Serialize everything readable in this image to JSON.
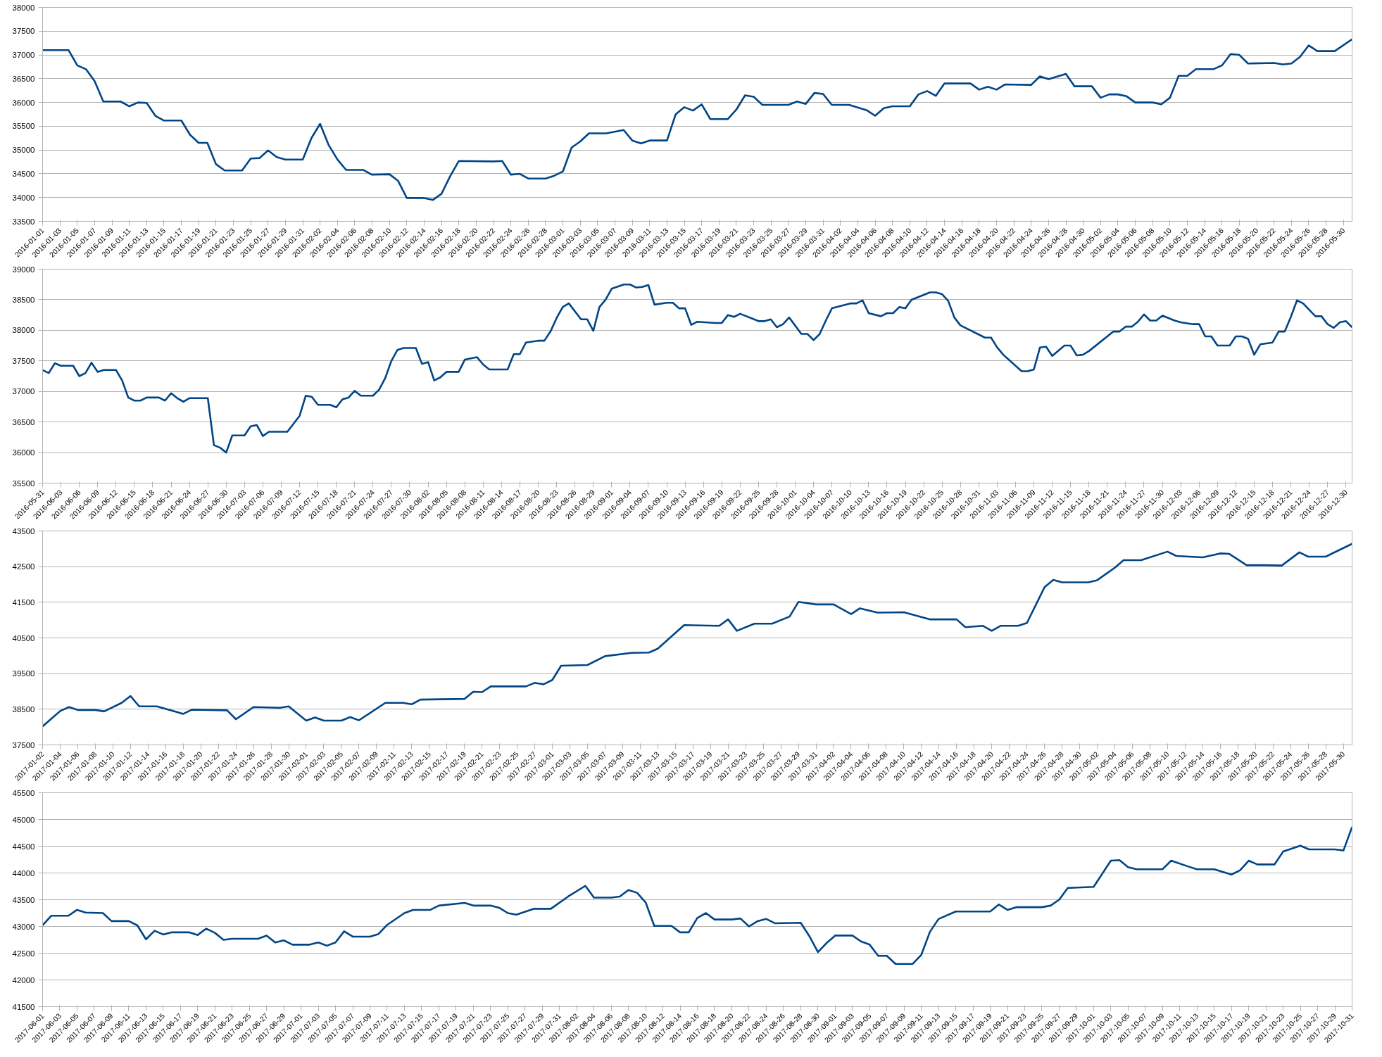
{
  "chart_data": [
    {
      "type": "line",
      "grid": "y",
      "xlim": [
        "2016-01-01",
        "2016-05-31"
      ],
      "ylim": [
        33500,
        38000
      ],
      "yticks": [
        33500,
        34000,
        34500,
        35000,
        35500,
        36000,
        36500,
        37000,
        37500,
        38000
      ],
      "xticks": [
        "2016-01-01",
        "2016-01-03",
        "2016-01-05",
        "2016-01-07",
        "2016-01-09",
        "2016-01-11",
        "2016-01-13",
        "2016-01-15",
        "2016-01-17",
        "2016-01-19",
        "2016-01-21",
        "2016-01-23",
        "2016-01-25",
        "2016-01-27",
        "2016-01-29",
        "2016-01-31",
        "2016-02-02",
        "2016-02-04",
        "2016-02-06",
        "2016-02-08",
        "2016-02-10",
        "2016-02-12",
        "2016-02-14",
        "2016-02-16",
        "2016-02-18",
        "2016-02-20",
        "2016-02-22",
        "2016-02-24",
        "2016-02-26",
        "2016-02-28",
        "2016-03-01",
        "2016-03-03",
        "2016-03-05",
        "2016-03-07",
        "2016-03-09",
        "2016-03-11",
        "2016-03-13",
        "2016-03-15",
        "2016-03-17",
        "2016-03-19",
        "2016-03-21",
        "2016-03-23",
        "2016-03-25",
        "2016-03-27",
        "2016-03-29",
        "2016-03-31",
        "2016-04-02",
        "2016-04-04",
        "2016-04-06",
        "2016-04-08",
        "2016-04-10",
        "2016-04-12",
        "2016-04-14",
        "2016-04-16",
        "2016-04-18",
        "2016-04-20",
        "2016-04-22",
        "2016-04-24",
        "2016-04-26",
        "2016-04-28",
        "2016-04-30",
        "2016-05-02",
        "2016-05-04",
        "2016-05-06",
        "2016-05-08",
        "2016-05-10",
        "2016-05-12",
        "2016-05-14",
        "2016-05-16",
        "2016-05-18",
        "2016-05-20",
        "2016-05-22",
        "2016-05-24",
        "2016-05-26",
        "2016-05-28",
        "2016-05-30"
      ],
      "series": [
        {
          "color": "#004586",
          "x": [
            "2016-01-01",
            "2016-01-04",
            "2016-01-05",
            "2016-01-06",
            "2016-01-07",
            "2016-01-08",
            "2016-01-10",
            "2016-01-11",
            "2016-01-12",
            "2016-01-13",
            "2016-01-14",
            "2016-01-15",
            "2016-01-17",
            "2016-01-18",
            "2016-01-19",
            "2016-01-20",
            "2016-01-21",
            "2016-01-22",
            "2016-01-24",
            "2016-01-25",
            "2016-01-26",
            "2016-01-27",
            "2016-01-28",
            "2016-01-29",
            "2016-01-31",
            "2016-02-01",
            "2016-02-02",
            "2016-02-03",
            "2016-02-04",
            "2016-02-05",
            "2016-02-07",
            "2016-02-08",
            "2016-02-10",
            "2016-02-11",
            "2016-02-12",
            "2016-02-14",
            "2016-02-15",
            "2016-02-16",
            "2016-02-17",
            "2016-02-18",
            "2016-02-22",
            "2016-02-23",
            "2016-02-24",
            "2016-02-25",
            "2016-02-26",
            "2016-02-28",
            "2016-02-29",
            "2016-03-01",
            "2016-03-02",
            "2016-03-03",
            "2016-03-04",
            "2016-03-06",
            "2016-03-08",
            "2016-03-09",
            "2016-03-10",
            "2016-03-11",
            "2016-03-13",
            "2016-03-14",
            "2016-03-15",
            "2016-03-16",
            "2016-03-17",
            "2016-03-18",
            "2016-03-20",
            "2016-03-21",
            "2016-03-22",
            "2016-03-23",
            "2016-03-24",
            "2016-03-27",
            "2016-03-28",
            "2016-03-29",
            "2016-03-30",
            "2016-03-31",
            "2016-04-01",
            "2016-04-03",
            "2016-04-05",
            "2016-04-06",
            "2016-04-07",
            "2016-04-08",
            "2016-04-10",
            "2016-04-11",
            "2016-04-12",
            "2016-04-13",
            "2016-04-14",
            "2016-04-17",
            "2016-04-18",
            "2016-04-19",
            "2016-04-20",
            "2016-04-21",
            "2016-04-24",
            "2016-04-25",
            "2016-04-26",
            "2016-04-28",
            "2016-04-29",
            "2016-05-01",
            "2016-05-02",
            "2016-05-03",
            "2016-05-04",
            "2016-05-05",
            "2016-05-06",
            "2016-05-08",
            "2016-05-09",
            "2016-05-10",
            "2016-05-11",
            "2016-05-12",
            "2016-05-13",
            "2016-05-15",
            "2016-05-16",
            "2016-05-17",
            "2016-05-18",
            "2016-05-19",
            "2016-05-22",
            "2016-05-23",
            "2016-05-24",
            "2016-05-25",
            "2016-05-26",
            "2016-05-27",
            "2016-05-29",
            "2016-05-31"
          ],
          "values": [
            37100,
            37100,
            36780,
            36700,
            36450,
            36020,
            36020,
            35920,
            36000,
            35990,
            35720,
            35620,
            35620,
            35320,
            35150,
            35150,
            34700,
            34570,
            34570,
            34820,
            34830,
            34990,
            34850,
            34800,
            34800,
            35250,
            35550,
            35100,
            34800,
            34580,
            34580,
            34480,
            34490,
            34350,
            33990,
            33990,
            33950,
            34080,
            34450,
            34770,
            34760,
            34770,
            34480,
            34500,
            34400,
            34400,
            34460,
            34550,
            35050,
            35180,
            35350,
            35350,
            35420,
            35200,
            35140,
            35200,
            35200,
            35750,
            35900,
            35830,
            35960,
            35650,
            35650,
            35850,
            36150,
            36120,
            35950,
            35950,
            36020,
            35970,
            36200,
            36180,
            35950,
            35950,
            35840,
            35720,
            35880,
            35920,
            35920,
            36170,
            36240,
            36140,
            36400,
            36400,
            36270,
            36330,
            36270,
            36380,
            36370,
            36550,
            36490,
            36600,
            36340,
            36340,
            36100,
            36170,
            36170,
            36130,
            36000,
            36000,
            35960,
            36100,
            36560,
            36560,
            36700,
            36700,
            36780,
            37020,
            37000,
            36820,
            36830,
            36800,
            36820,
            36960,
            37200,
            37080,
            37080,
            37330
          ]
        }
      ]
    },
    {
      "type": "line",
      "grid": "y",
      "xlim": [
        "2016-05-31",
        "2016-12-31"
      ],
      "ylim": [
        35500,
        39000
      ],
      "yticks": [
        35500,
        36000,
        36500,
        37000,
        37500,
        38000,
        38500,
        39000
      ],
      "xticks": [
        "2016-05-31",
        "2016-06-03",
        "2016-06-06",
        "2016-06-09",
        "2016-06-12",
        "2016-06-15",
        "2016-06-18",
        "2016-06-21",
        "2016-06-24",
        "2016-06-27",
        "2016-06-30",
        "2016-07-03",
        "2016-07-06",
        "2016-07-09",
        "2016-07-12",
        "2016-07-15",
        "2016-07-18",
        "2016-07-21",
        "2016-07-24",
        "2016-07-27",
        "2016-07-30",
        "2016-08-02",
        "2016-08-05",
        "2016-08-08",
        "2016-08-11",
        "2016-08-14",
        "2016-08-17",
        "2016-08-20",
        "2016-08-23",
        "2016-08-26",
        "2016-08-29",
        "2016-09-01",
        "2016-09-04",
        "2016-09-07",
        "2016-09-10",
        "2016-09-13",
        "2016-09-16",
        "2016-09-19",
        "2016-09-22",
        "2016-09-25",
        "2016-09-28",
        "2016-10-01",
        "2016-10-04",
        "2016-10-07",
        "2016-10-10",
        "2016-10-13",
        "2016-10-16",
        "2016-10-19",
        "2016-10-22",
        "2016-10-25",
        "2016-10-28",
        "2016-10-31",
        "2016-11-03",
        "2016-11-06",
        "2016-11-09",
        "2016-11-12",
        "2016-11-15",
        "2016-11-18",
        "2016-11-21",
        "2016-11-24",
        "2016-11-27",
        "2016-11-30",
        "2016-12-03",
        "2016-12-06",
        "2016-12-09",
        "2016-12-12",
        "2016-12-15",
        "2016-12-18",
        "2016-12-21",
        "2016-12-24",
        "2016-12-27",
        "2016-12-30"
      ],
      "series": [
        {
          "color": "#004586",
          "x": [
            "2016-05-31",
            "2016-06-01",
            "2016-06-02",
            "2016-06-03",
            "2016-06-05",
            "2016-06-06",
            "2016-06-07",
            "2016-06-08",
            "2016-06-09",
            "2016-06-10",
            "2016-06-12",
            "2016-06-13",
            "2016-06-14",
            "2016-06-15",
            "2016-06-16",
            "2016-06-17",
            "2016-06-19",
            "2016-06-20",
            "2016-06-21",
            "2016-06-22",
            "2016-06-23",
            "2016-06-24",
            "2016-06-27",
            "2016-06-28",
            "2016-06-29",
            "2016-06-30",
            "2016-07-01",
            "2016-07-03",
            "2016-07-04",
            "2016-07-05",
            "2016-07-06",
            "2016-07-07",
            "2016-07-10",
            "2016-07-12",
            "2016-07-13",
            "2016-07-14",
            "2016-07-15",
            "2016-07-17",
            "2016-07-18",
            "2016-07-19",
            "2016-07-20",
            "2016-07-21",
            "2016-07-22",
            "2016-07-24",
            "2016-07-25",
            "2016-07-26",
            "2016-07-27",
            "2016-07-28",
            "2016-07-29",
            "2016-07-31",
            "2016-08-01",
            "2016-08-02",
            "2016-08-03",
            "2016-08-04",
            "2016-08-05",
            "2016-08-07",
            "2016-08-08",
            "2016-08-10",
            "2016-08-11",
            "2016-08-12",
            "2016-08-15",
            "2016-08-16",
            "2016-08-17",
            "2016-08-18",
            "2016-08-20",
            "2016-08-21",
            "2016-08-22",
            "2016-08-23",
            "2016-08-24",
            "2016-08-25",
            "2016-08-27",
            "2016-08-28",
            "2016-08-29",
            "2016-08-30",
            "2016-08-31",
            "2016-09-01",
            "2016-09-03",
            "2016-09-04",
            "2016-09-05",
            "2016-09-06",
            "2016-09-07",
            "2016-09-08",
            "2016-09-10",
            "2016-09-11",
            "2016-09-12",
            "2016-09-13",
            "2016-09-14",
            "2016-09-15",
            "2016-09-18",
            "2016-09-19",
            "2016-09-20",
            "2016-09-21",
            "2016-09-22",
            "2016-09-25",
            "2016-09-26",
            "2016-09-27",
            "2016-09-28",
            "2016-09-29",
            "2016-09-30",
            "2016-10-02",
            "2016-10-03",
            "2016-10-04",
            "2016-10-05",
            "2016-10-06",
            "2016-10-07",
            "2016-10-10",
            "2016-10-11",
            "2016-10-12",
            "2016-10-13",
            "2016-10-15",
            "2016-10-16",
            "2016-10-17",
            "2016-10-18",
            "2016-10-19",
            "2016-10-20",
            "2016-10-23",
            "2016-10-24",
            "2016-10-25",
            "2016-10-26",
            "2016-10-27",
            "2016-10-28",
            "2016-11-01",
            "2016-11-02",
            "2016-11-03",
            "2016-11-04",
            "2016-11-07",
            "2016-11-08",
            "2016-11-09",
            "2016-11-10",
            "2016-11-11",
            "2016-11-12",
            "2016-11-14",
            "2016-11-15",
            "2016-11-16",
            "2016-11-17",
            "2016-11-18",
            "2016-11-22",
            "2016-11-23",
            "2016-11-24",
            "2016-11-25",
            "2016-11-26",
            "2016-11-27",
            "2016-11-28",
            "2016-11-29",
            "2016-11-30",
            "2016-12-02",
            "2016-12-03",
            "2016-12-05",
            "2016-12-06",
            "2016-12-07",
            "2016-12-08",
            "2016-12-09",
            "2016-12-11",
            "2016-12-12",
            "2016-12-13",
            "2016-12-14",
            "2016-12-15",
            "2016-12-16",
            "2016-12-18",
            "2016-12-19",
            "2016-12-20",
            "2016-12-21",
            "2016-12-22",
            "2016-12-23",
            "2016-12-25",
            "2016-12-26",
            "2016-12-27",
            "2016-12-28",
            "2016-12-29",
            "2016-12-30",
            "2016-12-31"
          ],
          "values": [
            37350,
            37300,
            37460,
            37420,
            37420,
            37250,
            37300,
            37470,
            37320,
            37350,
            37350,
            37180,
            36900,
            36850,
            36850,
            36900,
            36900,
            36850,
            36970,
            36890,
            36830,
            36890,
            36890,
            36120,
            36080,
            36000,
            36280,
            36280,
            36430,
            36450,
            36270,
            36340,
            36340,
            36600,
            36930,
            36910,
            36780,
            36780,
            36740,
            36870,
            36900,
            37010,
            36930,
            36930,
            37030,
            37220,
            37500,
            37680,
            37710,
            37710,
            37450,
            37480,
            37180,
            37230,
            37320,
            37320,
            37520,
            37560,
            37440,
            37360,
            37360,
            37610,
            37610,
            37800,
            37830,
            37830,
            37980,
            38200,
            38380,
            38440,
            38180,
            38180,
            37990,
            38380,
            38500,
            38680,
            38750,
            38750,
            38700,
            38710,
            38740,
            38420,
            38450,
            38450,
            38360,
            38360,
            38090,
            38140,
            38120,
            38120,
            38250,
            38220,
            38270,
            38150,
            38150,
            38180,
            38050,
            38100,
            38210,
            37940,
            37940,
            37840,
            37940,
            38160,
            38360,
            38440,
            38440,
            38490,
            38280,
            38230,
            38280,
            38280,
            38380,
            38360,
            38500,
            38620,
            38620,
            38590,
            38480,
            38210,
            38080,
            37880,
            37880,
            37720,
            37600,
            37330,
            37330,
            37360,
            37720,
            37730,
            37580,
            37750,
            37750,
            37590,
            37600,
            37660,
            37980,
            37980,
            38060,
            38060,
            38140,
            38260,
            38160,
            38160,
            38240,
            38160,
            38130,
            38100,
            38100,
            37900,
            37900,
            37750,
            37750,
            37900,
            37900,
            37860,
            37600,
            37770,
            37800,
            37980,
            37980,
            38220,
            38490,
            38440,
            38230,
            38230,
            38100,
            38040,
            38130,
            38150,
            38050
          ]
        }
      ]
    },
    {
      "type": "line",
      "grid": "y",
      "xlim": [
        "2017-01-02",
        "2017-05-31"
      ],
      "ylim": [
        37500,
        43500
      ],
      "yticks": [
        37500,
        38500,
        39500,
        40500,
        41500,
        42500,
        43500
      ],
      "xticks": [
        "2017-01-02",
        "2017-01-04",
        "2017-01-06",
        "2017-01-08",
        "2017-01-10",
        "2017-01-12",
        "2017-01-14",
        "2017-01-16",
        "2017-01-18",
        "2017-01-20",
        "2017-01-22",
        "2017-01-24",
        "2017-01-26",
        "2017-01-28",
        "2017-01-30",
        "2017-02-01",
        "2017-02-03",
        "2017-02-05",
        "2017-02-07",
        "2017-02-09",
        "2017-02-11",
        "2017-02-13",
        "2017-02-15",
        "2017-02-17",
        "2017-02-19",
        "2017-02-21",
        "2017-02-23",
        "2017-02-25",
        "2017-02-27",
        "2017-03-01",
        "2017-03-03",
        "2017-03-05",
        "2017-03-07",
        "2017-03-09",
        "2017-03-11",
        "2017-03-13",
        "2017-03-15",
        "2017-03-17",
        "2017-03-19",
        "2017-03-21",
        "2017-03-23",
        "2017-03-25",
        "2017-03-27",
        "2017-03-29",
        "2017-03-31",
        "2017-04-02",
        "2017-04-04",
        "2017-04-06",
        "2017-04-08",
        "2017-04-10",
        "2017-04-12",
        "2017-04-14",
        "2017-04-16",
        "2017-04-18",
        "2017-04-20",
        "2017-04-22",
        "2017-04-24",
        "2017-04-26",
        "2017-04-28",
        "2017-04-30",
        "2017-05-02",
        "2017-05-04",
        "2017-05-06",
        "2017-05-08",
        "2017-05-10",
        "2017-05-12",
        "2017-05-14",
        "2017-05-16",
        "2017-05-18",
        "2017-05-20",
        "2017-05-22",
        "2017-05-24",
        "2017-05-26",
        "2017-05-28",
        "2017-05-30"
      ],
      "series": [
        {
          "color": "#004586",
          "x": [
            "2017-01-02",
            "2017-01-04",
            "2017-01-05",
            "2017-01-06",
            "2017-01-08",
            "2017-01-09",
            "2017-01-11",
            "2017-01-12",
            "2017-01-13",
            "2017-01-15",
            "2017-01-18",
            "2017-01-19",
            "2017-01-23",
            "2017-01-24",
            "2017-01-26",
            "2017-01-29",
            "2017-01-30",
            "2017-02-01",
            "2017-02-02",
            "2017-02-03",
            "2017-02-05",
            "2017-02-06",
            "2017-02-07",
            "2017-02-10",
            "2017-02-12",
            "2017-02-13",
            "2017-02-14",
            "2017-02-19",
            "2017-02-20",
            "2017-02-21",
            "2017-02-22",
            "2017-02-26",
            "2017-02-27",
            "2017-02-28",
            "2017-03-01",
            "2017-03-02",
            "2017-03-05",
            "2017-03-07",
            "2017-03-10",
            "2017-03-12",
            "2017-03-13",
            "2017-03-16",
            "2017-03-20",
            "2017-03-21",
            "2017-03-22",
            "2017-03-24",
            "2017-03-26",
            "2017-03-28",
            "2017-03-29",
            "2017-03-31",
            "2017-04-02",
            "2017-04-04",
            "2017-04-05",
            "2017-04-07",
            "2017-04-10",
            "2017-04-13",
            "2017-04-16",
            "2017-04-17",
            "2017-04-19",
            "2017-04-20",
            "2017-04-21",
            "2017-04-23",
            "2017-04-24",
            "2017-04-26",
            "2017-04-27",
            "2017-04-28",
            "2017-05-01",
            "2017-05-02",
            "2017-05-04",
            "2017-05-05",
            "2017-05-07",
            "2017-05-10",
            "2017-05-11",
            "2017-05-14",
            "2017-05-16",
            "2017-05-17",
            "2017-05-19",
            "2017-05-21",
            "2017-05-23",
            "2017-05-25",
            "2017-05-26",
            "2017-05-28",
            "2017-05-31"
          ],
          "values": [
            38020,
            38450,
            38560,
            38480,
            38480,
            38440,
            38680,
            38870,
            38580,
            38580,
            38370,
            38490,
            38470,
            38220,
            38560,
            38540,
            38580,
            38180,
            38270,
            38180,
            38180,
            38280,
            38190,
            38680,
            38680,
            38640,
            38770,
            38790,
            38990,
            38980,
            39140,
            39140,
            39240,
            39200,
            39320,
            39720,
            39740,
            39990,
            40080,
            40090,
            40200,
            40860,
            40840,
            41020,
            40700,
            40900,
            40900,
            41100,
            41510,
            41440,
            41440,
            41170,
            41330,
            41210,
            41220,
            41020,
            41020,
            40800,
            40840,
            40700,
            40840,
            40840,
            40920,
            41920,
            42130,
            42060,
            42060,
            42120,
            42470,
            42680,
            42680,
            42920,
            42800,
            42760,
            42870,
            42860,
            42540,
            42540,
            42530,
            42900,
            42780,
            42780,
            43140
          ]
        }
      ]
    },
    {
      "type": "line",
      "grid": "y",
      "xlim": [
        "2017-06-01",
        "2017-10-31"
      ],
      "ylim": [
        41500,
        45500
      ],
      "yticks": [
        41500,
        42000,
        42500,
        43000,
        43500,
        44000,
        44500,
        45000,
        45500
      ],
      "xticks": [
        "2017-06-01",
        "2017-06-03",
        "2017-06-05",
        "2017-06-07",
        "2017-06-09",
        "2017-06-11",
        "2017-06-13",
        "2017-06-15",
        "2017-06-17",
        "2017-06-19",
        "2017-06-21",
        "2017-06-23",
        "2017-06-25",
        "2017-06-27",
        "2017-06-29",
        "2017-07-01",
        "2017-07-03",
        "2017-07-05",
        "2017-07-07",
        "2017-07-09",
        "2017-07-11",
        "2017-07-13",
        "2017-07-15",
        "2017-07-17",
        "2017-07-19",
        "2017-07-21",
        "2017-07-23",
        "2017-07-25",
        "2017-07-27",
        "2017-07-29",
        "2017-07-31",
        "2017-08-02",
        "2017-08-04",
        "2017-08-06",
        "2017-08-08",
        "2017-08-10",
        "2017-08-12",
        "2017-08-14",
        "2017-08-16",
        "2017-08-18",
        "2017-08-20",
        "2017-08-22",
        "2017-08-24",
        "2017-08-26",
        "2017-08-28",
        "2017-08-30",
        "2017-09-01",
        "2017-09-03",
        "2017-09-05",
        "2017-09-07",
        "2017-09-09",
        "2017-09-11",
        "2017-09-13",
        "2017-09-15",
        "2017-09-17",
        "2017-09-19",
        "2017-09-21",
        "2017-09-23",
        "2017-09-25",
        "2017-09-27",
        "2017-09-29",
        "2017-10-01",
        "2017-10-03",
        "2017-10-05",
        "2017-10-07",
        "2017-10-09",
        "2017-10-11",
        "2017-10-13",
        "2017-10-15",
        "2017-10-17",
        "2017-10-19",
        "2017-10-21",
        "2017-10-23",
        "2017-10-25",
        "2017-10-27",
        "2017-10-29",
        "2017-10-31"
      ],
      "series": [
        {
          "color": "#004586",
          "x": [
            "2017-06-01",
            "2017-06-02",
            "2017-06-04",
            "2017-06-05",
            "2017-06-06",
            "2017-06-08",
            "2017-06-09",
            "2017-06-11",
            "2017-06-12",
            "2017-06-13",
            "2017-06-14",
            "2017-06-15",
            "2017-06-16",
            "2017-06-18",
            "2017-06-19",
            "2017-06-20",
            "2017-06-21",
            "2017-06-22",
            "2017-06-23",
            "2017-06-26",
            "2017-06-27",
            "2017-06-28",
            "2017-06-29",
            "2017-06-30",
            "2017-07-02",
            "2017-07-03",
            "2017-07-04",
            "2017-07-05",
            "2017-07-06",
            "2017-07-07",
            "2017-07-09",
            "2017-07-10",
            "2017-07-11",
            "2017-07-13",
            "2017-07-14",
            "2017-07-16",
            "2017-07-17",
            "2017-07-20",
            "2017-07-21",
            "2017-07-23",
            "2017-07-24",
            "2017-07-25",
            "2017-07-26",
            "2017-07-28",
            "2017-07-30",
            "2017-08-01",
            "2017-08-03",
            "2017-08-04",
            "2017-08-06",
            "2017-08-07",
            "2017-08-08",
            "2017-08-09",
            "2017-08-10",
            "2017-08-11",
            "2017-08-13",
            "2017-08-14",
            "2017-08-15",
            "2017-08-16",
            "2017-08-17",
            "2017-08-18",
            "2017-08-20",
            "2017-08-21",
            "2017-08-22",
            "2017-08-23",
            "2017-08-24",
            "2017-08-25",
            "2017-08-28",
            "2017-08-29",
            "2017-08-30",
            "2017-08-31",
            "2017-09-01",
            "2017-09-03",
            "2017-09-04",
            "2017-09-05",
            "2017-09-06",
            "2017-09-07",
            "2017-09-08",
            "2017-09-10",
            "2017-09-11",
            "2017-09-12",
            "2017-09-13",
            "2017-09-15",
            "2017-09-19",
            "2017-09-20",
            "2017-09-21",
            "2017-09-22",
            "2017-09-25",
            "2017-09-26",
            "2017-09-27",
            "2017-09-28",
            "2017-10-01",
            "2017-10-03",
            "2017-10-04",
            "2017-10-05",
            "2017-10-06",
            "2017-10-09",
            "2017-10-10",
            "2017-10-12",
            "2017-10-13",
            "2017-10-15",
            "2017-10-17",
            "2017-10-18",
            "2017-10-19",
            "2017-10-20",
            "2017-10-22",
            "2017-10-23",
            "2017-10-25",
            "2017-10-26",
            "2017-10-29",
            "2017-10-30",
            "2017-10-31"
          ],
          "values": [
            43020,
            43200,
            43200,
            43310,
            43260,
            43250,
            43100,
            43100,
            43020,
            42760,
            42920,
            42850,
            42890,
            42890,
            42840,
            42960,
            42880,
            42750,
            42770,
            42770,
            42830,
            42700,
            42740,
            42660,
            42660,
            42700,
            42640,
            42700,
            42910,
            42810,
            42810,
            42860,
            43030,
            43250,
            43310,
            43310,
            43390,
            43440,
            43390,
            43390,
            43350,
            43250,
            43220,
            43330,
            43330,
            43560,
            43760,
            43540,
            43540,
            43560,
            43680,
            43630,
            43450,
            43010,
            43010,
            42890,
            42890,
            43160,
            43250,
            43130,
            43130,
            43150,
            43000,
            43100,
            43140,
            43060,
            43070,
            42820,
            42520,
            42690,
            42830,
            42830,
            42720,
            42660,
            42450,
            42450,
            42300,
            42300,
            42470,
            42900,
            43140,
            43280,
            43280,
            43410,
            43310,
            43360,
            43360,
            43390,
            43500,
            43720,
            43740,
            44230,
            44240,
            44110,
            44070,
            44070,
            44230,
            44120,
            44070,
            44070,
            43970,
            44050,
            44230,
            44160,
            44160,
            44400,
            44510,
            44440,
            44440,
            44420,
            44860
          ]
        }
      ]
    }
  ]
}
